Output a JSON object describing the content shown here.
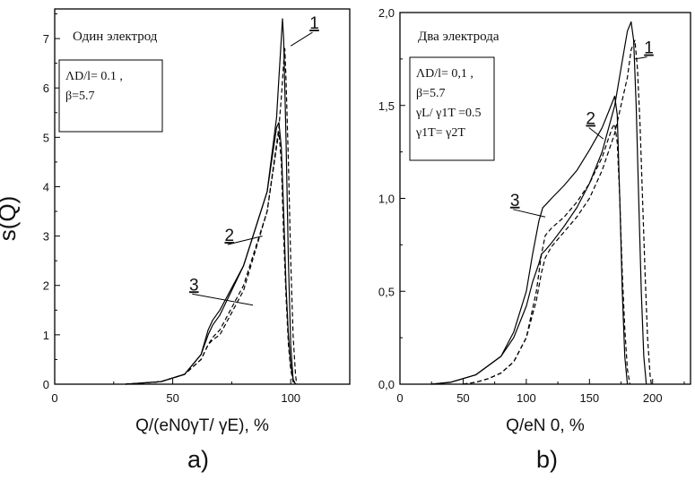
{
  "figure": {
    "ylabel": "s(Q)"
  },
  "chart_data": [
    {
      "type": "line",
      "panel_label": "a)",
      "title": "Один электрод",
      "xlabel": "Q/(eN0γT/ γE), %",
      "ylabel": "s(Q)",
      "xlim": [
        0,
        125
      ],
      "ylim": [
        0,
        7.6
      ],
      "xticks": [
        "0",
        "50",
        "100"
      ],
      "yticks": [
        "0",
        "1",
        "2",
        "3",
        "4",
        "5",
        "6",
        "7"
      ],
      "params": [
        "ΛD/l= 0.1 ,",
        "β=5.7"
      ],
      "grid": false,
      "series": [
        {
          "name": "1",
          "style": "dashed",
          "x": [
            30,
            45,
            55,
            62,
            65,
            67,
            70,
            80,
            90,
            95,
            96,
            97,
            97.5,
            98,
            99,
            100,
            101,
            102,
            102.5
          ],
          "y": [
            0,
            0.05,
            0.2,
            0.5,
            0.8,
            0.95,
            1.1,
            2.0,
            3.5,
            5.2,
            5.8,
            6.5,
            6.8,
            6.2,
            4.5,
            2.5,
            1.0,
            0.2,
            0
          ]
        },
        {
          "name": "1",
          "style": "solid",
          "x": [
            30,
            45,
            55,
            62,
            65,
            67,
            70,
            80,
            90,
            94,
            95,
            96,
            96.5,
            97,
            98,
            99,
            100,
            101,
            102
          ],
          "y": [
            0,
            0.05,
            0.2,
            0.6,
            1.0,
            1.2,
            1.4,
            2.4,
            3.9,
            5.4,
            6.2,
            7.0,
            7.4,
            7.0,
            5.0,
            2.5,
            0.8,
            0.1,
            0
          ]
        },
        {
          "name": "2",
          "style": "dashed",
          "x": [
            30,
            45,
            55,
            62,
            65,
            67,
            70,
            80,
            90,
            94,
            95,
            96,
            97,
            98,
            99,
            100,
            101,
            102
          ],
          "y": [
            0,
            0.05,
            0.2,
            0.5,
            0.8,
            0.9,
            1.0,
            1.9,
            3.5,
            4.8,
            5.1,
            4.5,
            3.0,
            1.8,
            0.8,
            0.3,
            0.05,
            0
          ]
        },
        {
          "name": "3",
          "style": "solid",
          "x": [
            30,
            45,
            55,
            62,
            65,
            67,
            70,
            80,
            90,
            94,
            95,
            96,
            97,
            98,
            99,
            100,
            101,
            102
          ],
          "y": [
            0,
            0.05,
            0.2,
            0.6,
            1.1,
            1.3,
            1.5,
            2.4,
            3.9,
            5.2,
            5.3,
            4.8,
            3.5,
            2.0,
            1.0,
            0.4,
            0.1,
            0
          ]
        }
      ],
      "curve_labels": [
        {
          "text": "1",
          "x": 110,
          "y": 7.2
        },
        {
          "text": "2",
          "x": 74,
          "y": 2.9
        },
        {
          "text": "3",
          "x": 59,
          "y": 1.9
        }
      ]
    },
    {
      "type": "line",
      "panel_label": "b)",
      "title": "Два электрода",
      "xlabel": "Q/eN 0, %",
      "ylabel": "",
      "xlim": [
        0,
        230
      ],
      "ylim": [
        0,
        2.0
      ],
      "xticks": [
        "0",
        "50",
        "100",
        "150",
        "200"
      ],
      "yticks": [
        "0,0",
        "0,5",
        "1,0",
        "1,5",
        "2,0"
      ],
      "params": [
        "ΛD/l= 0,1 ,",
        "β=5.7",
        "γL/ γ1T =0.5",
        "γ1T= γ2T"
      ],
      "grid": false,
      "series": [
        {
          "name": "1",
          "style": "dashed",
          "x": [
            50,
            60,
            70,
            80,
            90,
            100,
            108,
            112,
            115,
            120,
            130,
            140,
            150,
            160,
            170,
            175,
            180,
            183,
            186,
            188,
            190,
            192,
            194,
            196,
            198,
            199
          ],
          "y": [
            0,
            0.01,
            0.03,
            0.06,
            0.12,
            0.25,
            0.45,
            0.6,
            0.68,
            0.74,
            0.82,
            0.9,
            1.0,
            1.15,
            1.35,
            1.5,
            1.65,
            1.8,
            1.85,
            1.7,
            1.4,
            1.0,
            0.6,
            0.25,
            0.05,
            0
          ]
        },
        {
          "name": "1",
          "style": "solid",
          "x": [
            25,
            40,
            60,
            80,
            90,
            100,
            105,
            110,
            112,
            115,
            120,
            130,
            140,
            150,
            160,
            170,
            175,
            180,
            183,
            185,
            187,
            189,
            191,
            193,
            195
          ],
          "y": [
            0,
            0.01,
            0.05,
            0.15,
            0.25,
            0.42,
            0.55,
            0.65,
            0.7,
            0.72,
            0.76,
            0.85,
            0.95,
            1.08,
            1.25,
            1.5,
            1.7,
            1.9,
            1.95,
            1.85,
            1.5,
            1.0,
            0.5,
            0.15,
            0
          ]
        },
        {
          "name": "2",
          "style": "dashed",
          "x": [
            50,
            60,
            70,
            80,
            90,
            100,
            108,
            112,
            115,
            120,
            130,
            140,
            150,
            160,
            165,
            168,
            170,
            172,
            174,
            176,
            178,
            180,
            182
          ],
          "y": [
            0,
            0.01,
            0.03,
            0.06,
            0.12,
            0.25,
            0.5,
            0.7,
            0.8,
            0.84,
            0.9,
            0.98,
            1.08,
            1.22,
            1.32,
            1.38,
            1.4,
            1.3,
            1.0,
            0.6,
            0.3,
            0.08,
            0
          ]
        },
        {
          "name": "3",
          "style": "solid",
          "x": [
            25,
            40,
            60,
            80,
            90,
            100,
            105,
            110,
            113,
            116,
            120,
            130,
            140,
            150,
            160,
            166,
            170,
            172,
            174,
            176,
            178,
            180
          ],
          "y": [
            0,
            0.01,
            0.05,
            0.15,
            0.28,
            0.5,
            0.7,
            0.88,
            0.95,
            0.97,
            1.0,
            1.07,
            1.15,
            1.26,
            1.38,
            1.48,
            1.55,
            1.45,
            1.0,
            0.5,
            0.15,
            0
          ]
        }
      ],
      "curve_labels": [
        {
          "text": "1",
          "x": 197,
          "y": 1.78
        },
        {
          "text": "2",
          "x": 151,
          "y": 1.4
        },
        {
          "text": "3",
          "x": 91,
          "y": 0.96
        }
      ]
    }
  ]
}
